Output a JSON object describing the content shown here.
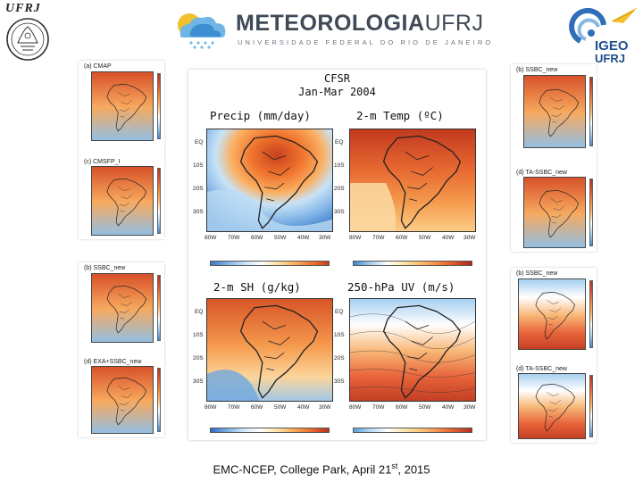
{
  "header": {
    "ufrj_wordmark": "UFRJ",
    "meteo_main_a": "METEOROLOGIA",
    "meteo_main_b": "UFRJ",
    "meteo_sub": "UNIVERSIDADE FEDERAL DO RIO DE JANEIRO",
    "igeo_line1": "IGEO",
    "igeo_line2": "UFRJ"
  },
  "figure": {
    "title_line1": "CFSR",
    "title_line2": "Jan-Mar 2004",
    "panels": [
      {
        "title": "Precip (mm/day)"
      },
      {
        "title": "2-m Temp (ºC)"
      },
      {
        "title": "2-m SH (g/kg)"
      },
      {
        "title": "250-hPa UV (m/s)"
      }
    ],
    "lat_labels": [
      "EQ",
      "10S",
      "20S",
      "30S"
    ],
    "lon_labels": [
      "80W",
      "70W",
      "60W",
      "50W",
      "40W",
      "30W"
    ]
  },
  "thumbnails": {
    "left": [
      {
        "label": "(a)  CMAP"
      },
      {
        "label": "(c)  CMSFP_I"
      },
      {
        "label": "(b)  SSBC_new"
      },
      {
        "label": "(d) EXA+SSBC_new"
      }
    ],
    "right": [
      {
        "label": "(b)  SSBC_new"
      },
      {
        "label": "(d) TA-SSBC_new"
      },
      {
        "label": "(b)  SSBC_new"
      },
      {
        "label": "(d) TA-SSBC_new"
      }
    ]
  },
  "colors": {
    "warm": "#e0522a",
    "hot": "#b3301f",
    "cool": "#7fb2e6",
    "neutral": "#ffffff"
  },
  "footer": {
    "text_before": "EMC-NCEP, College Park, April 21",
    "sup": "st",
    "text_after": ", 2015"
  }
}
